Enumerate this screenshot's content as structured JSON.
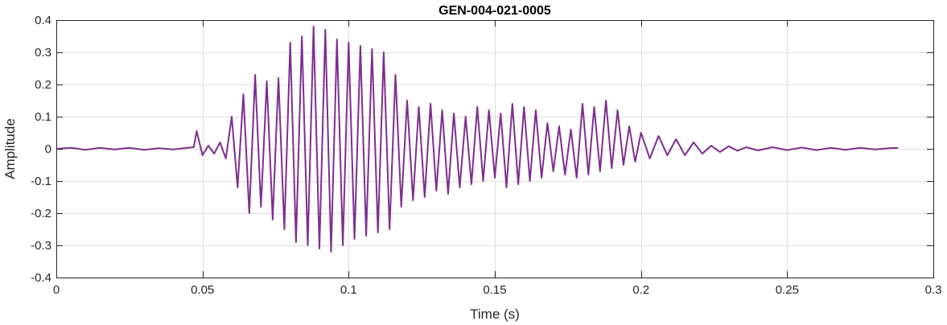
{
  "chart_data": {
    "type": "line",
    "title": "GEN-004-021-0005",
    "xlabel": "Time (s)",
    "ylabel": "Amplitude",
    "xlim": [
      0,
      0.3
    ],
    "ylim": [
      -0.4,
      0.4
    ],
    "x_ticks": [
      0,
      0.05,
      0.1,
      0.15,
      0.2,
      0.25,
      0.3
    ],
    "x_tick_labels": [
      "0",
      "0.05",
      "0.1",
      "0.15",
      "0.2",
      "0.25",
      "0.3"
    ],
    "y_ticks": [
      -0.4,
      -0.3,
      -0.2,
      -0.1,
      0,
      0.1,
      0.2,
      0.3,
      0.4
    ],
    "y_tick_labels": [
      "-0.4",
      "-0.3",
      "-0.2",
      "-0.1",
      "0",
      "0.1",
      "0.2",
      "0.3",
      "0.4"
    ],
    "grid": true,
    "series": [
      {
        "color": "#7E2F8E",
        "x": [
          0,
          0.005,
          0.01,
          0.015,
          0.02,
          0.025,
          0.03,
          0.035,
          0.04,
          0.045,
          0.047,
          0.048,
          0.05,
          0.052,
          0.054,
          0.056,
          0.058,
          0.06,
          0.062,
          0.064,
          0.066,
          0.068,
          0.07,
          0.072,
          0.074,
          0.076,
          0.078,
          0.08,
          0.082,
          0.084,
          0.086,
          0.088,
          0.09,
          0.092,
          0.094,
          0.096,
          0.098,
          0.1,
          0.102,
          0.104,
          0.106,
          0.108,
          0.11,
          0.112,
          0.114,
          0.116,
          0.118,
          0.12,
          0.122,
          0.124,
          0.126,
          0.128,
          0.13,
          0.132,
          0.134,
          0.136,
          0.138,
          0.14,
          0.142,
          0.144,
          0.146,
          0.148,
          0.15,
          0.152,
          0.154,
          0.156,
          0.158,
          0.16,
          0.162,
          0.164,
          0.166,
          0.168,
          0.17,
          0.172,
          0.174,
          0.176,
          0.178,
          0.18,
          0.182,
          0.184,
          0.186,
          0.188,
          0.19,
          0.192,
          0.194,
          0.196,
          0.198,
          0.2,
          0.203,
          0.206,
          0.209,
          0.212,
          0.215,
          0.218,
          0.221,
          0.224,
          0.227,
          0.23,
          0.233,
          0.236,
          0.24,
          0.245,
          0.25,
          0.255,
          0.26,
          0.265,
          0.27,
          0.275,
          0.28,
          0.285,
          0.288
        ],
        "y": [
          0,
          0.003,
          -0.003,
          0.003,
          -0.002,
          0.003,
          -0.003,
          0.002,
          -0.002,
          0.003,
          0.005,
          0.055,
          -0.02,
          0.01,
          -0.015,
          0.02,
          -0.03,
          0.1,
          -0.12,
          0.17,
          -0.2,
          0.23,
          -0.18,
          0.21,
          -0.22,
          0.22,
          -0.25,
          0.33,
          -0.29,
          0.35,
          -0.3,
          0.38,
          -0.31,
          0.37,
          -0.32,
          0.34,
          -0.3,
          0.33,
          -0.28,
          0.32,
          -0.27,
          0.31,
          -0.26,
          0.3,
          -0.25,
          0.23,
          -0.18,
          0.15,
          -0.16,
          0.13,
          -0.15,
          0.14,
          -0.13,
          0.12,
          -0.14,
          0.11,
          -0.12,
          0.1,
          -0.11,
          0.13,
          -0.1,
          0.12,
          -0.09,
          0.11,
          -0.12,
          0.14,
          -0.11,
          0.13,
          -0.1,
          0.12,
          -0.09,
          0.08,
          -0.07,
          0.07,
          -0.08,
          0.06,
          -0.09,
          0.14,
          -0.08,
          0.13,
          -0.07,
          0.15,
          -0.06,
          0.12,
          -0.05,
          0.07,
          -0.04,
          0.05,
          -0.03,
          0.04,
          -0.02,
          0.03,
          -0.02,
          0.02,
          -0.015,
          0.01,
          -0.01,
          0.008,
          -0.006,
          0.005,
          -0.005,
          0.005,
          -0.004,
          0.004,
          -0.004,
          0.003,
          -0.003,
          0.003,
          -0.002,
          0.002,
          0.003
        ]
      }
    ]
  }
}
